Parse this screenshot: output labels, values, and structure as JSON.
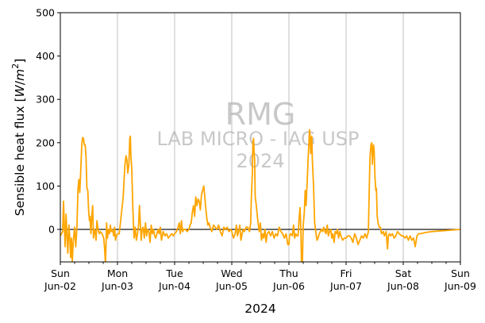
{
  "chart_data": {
    "type": "line",
    "title": "",
    "ylabel": "Sensible heat flux [W/m²]",
    "ylabel_parts": {
      "prefix": "Sensible heat flux [",
      "var": "W",
      "sep": "/",
      "var2": "m",
      "sup": "2",
      "suffix": "]"
    },
    "xlabel": "2024",
    "ylim": [
      -75,
      500
    ],
    "xlim": [
      0,
      7
    ],
    "x_unit": "days since Sun Jun-02 00:00",
    "yticks": [
      0,
      100,
      200,
      300,
      400,
      500
    ],
    "xticks": [
      {
        "pos": 0,
        "day": "Sun",
        "date": "Jun-02"
      },
      {
        "pos": 1,
        "day": "Mon",
        "date": "Jun-03"
      },
      {
        "pos": 2,
        "day": "Tue",
        "date": "Jun-04"
      },
      {
        "pos": 3,
        "day": "Wed",
        "date": "Jun-05"
      },
      {
        "pos": 4,
        "day": "Thu",
        "date": "Jun-06"
      },
      {
        "pos": 5,
        "day": "Fri",
        "date": "Jun-07"
      },
      {
        "pos": 6,
        "day": "Sat",
        "date": "Jun-08"
      },
      {
        "pos": 7,
        "day": "Sun",
        "date": "Jun-09"
      }
    ],
    "grid": "vertical at major ticks",
    "zero_line": true,
    "watermark": [
      "RMG",
      "LAB MICRO - IAG USP",
      "2024"
    ],
    "series": [
      {
        "color": "#FFA500",
        "points": [
          [
            0.0,
            -15
          ],
          [
            0.02,
            -10
          ],
          [
            0.04,
            -5
          ],
          [
            0.055,
            65
          ],
          [
            0.07,
            10
          ],
          [
            0.085,
            -40
          ],
          [
            0.1,
            35
          ],
          [
            0.115,
            -10
          ],
          [
            0.13,
            -55
          ],
          [
            0.15,
            10
          ],
          [
            0.165,
            -20
          ],
          [
            0.18,
            -65
          ],
          [
            0.195,
            -20
          ],
          [
            0.21,
            -75
          ],
          [
            0.225,
            -30
          ],
          [
            0.25,
            5
          ],
          [
            0.27,
            -40
          ],
          [
            0.29,
            5
          ],
          [
            0.31,
            95
          ],
          [
            0.325,
            115
          ],
          [
            0.34,
            85
          ],
          [
            0.355,
            130
          ],
          [
            0.375,
            195
          ],
          [
            0.39,
            212
          ],
          [
            0.405,
            210
          ],
          [
            0.42,
            195
          ],
          [
            0.435,
            195
          ],
          [
            0.45,
            165
          ],
          [
            0.465,
            95
          ],
          [
            0.48,
            90
          ],
          [
            0.495,
            45
          ],
          [
            0.51,
            20
          ],
          [
            0.52,
            30
          ],
          [
            0.535,
            -10
          ],
          [
            0.55,
            30
          ],
          [
            0.565,
            55
          ],
          [
            0.58,
            -20
          ],
          [
            0.595,
            0
          ],
          [
            0.61,
            -5
          ],
          [
            0.625,
            -25
          ],
          [
            0.64,
            20
          ],
          [
            0.655,
            5
          ],
          [
            0.67,
            -5
          ],
          [
            0.685,
            -10
          ],
          [
            0.7,
            -5
          ],
          [
            0.73,
            -10
          ],
          [
            0.76,
            -20
          ],
          [
            0.775,
            -45
          ],
          [
            0.79,
            -80
          ],
          [
            0.81,
            15
          ],
          [
            0.825,
            -20
          ],
          [
            0.84,
            0
          ],
          [
            0.86,
            -10
          ],
          [
            0.875,
            10
          ],
          [
            0.89,
            -5
          ],
          [
            0.905,
            0
          ],
          [
            0.92,
            -5
          ],
          [
            0.935,
            -15
          ],
          [
            0.95,
            5
          ],
          [
            0.965,
            -25
          ],
          [
            0.98,
            -15
          ],
          [
            1.0,
            -10
          ],
          [
            1.03,
            -10
          ],
          [
            1.06,
            25
          ],
          [
            1.1,
            75
          ],
          [
            1.13,
            150
          ],
          [
            1.15,
            170
          ],
          [
            1.165,
            160
          ],
          [
            1.18,
            130
          ],
          [
            1.2,
            150
          ],
          [
            1.215,
            210
          ],
          [
            1.225,
            215
          ],
          [
            1.235,
            170
          ],
          [
            1.25,
            140
          ],
          [
            1.27,
            45
          ],
          [
            1.29,
            -20
          ],
          [
            1.31,
            5
          ],
          [
            1.33,
            -25
          ],
          [
            1.35,
            -10
          ],
          [
            1.37,
            10
          ],
          [
            1.385,
            55
          ],
          [
            1.4,
            15
          ],
          [
            1.415,
            -25
          ],
          [
            1.43,
            0
          ],
          [
            1.45,
            5
          ],
          [
            1.47,
            -20
          ],
          [
            1.49,
            15
          ],
          [
            1.51,
            -15
          ],
          [
            1.53,
            0
          ],
          [
            1.55,
            -5
          ],
          [
            1.57,
            -30
          ],
          [
            1.59,
            10
          ],
          [
            1.61,
            -10
          ],
          [
            1.63,
            0
          ],
          [
            1.65,
            -15
          ],
          [
            1.67,
            -20
          ],
          [
            1.69,
            -10
          ],
          [
            1.71,
            0
          ],
          [
            1.73,
            -10
          ],
          [
            1.75,
            5
          ],
          [
            1.77,
            -25
          ],
          [
            1.8,
            -5
          ],
          [
            1.83,
            -15
          ],
          [
            1.86,
            -10
          ],
          [
            1.89,
            -20
          ],
          [
            1.92,
            -15
          ],
          [
            1.95,
            -10
          ],
          [
            1.98,
            -15
          ],
          [
            2.0,
            -10
          ],
          [
            2.03,
            -5
          ],
          [
            2.06,
            5
          ],
          [
            2.08,
            15
          ],
          [
            2.1,
            -10
          ],
          [
            2.12,
            20
          ],
          [
            2.14,
            -5
          ],
          [
            2.16,
            0
          ],
          [
            2.19,
            0
          ],
          [
            2.22,
            -5
          ],
          [
            2.25,
            0
          ],
          [
            2.27,
            10
          ],
          [
            2.29,
            15
          ],
          [
            2.31,
            40
          ],
          [
            2.33,
            55
          ],
          [
            2.35,
            30
          ],
          [
            2.37,
            75
          ],
          [
            2.39,
            55
          ],
          [
            2.41,
            70
          ],
          [
            2.43,
            65
          ],
          [
            2.45,
            45
          ],
          [
            2.47,
            80
          ],
          [
            2.49,
            90
          ],
          [
            2.51,
            100
          ],
          [
            2.525,
            80
          ],
          [
            2.54,
            55
          ],
          [
            2.56,
            30
          ],
          [
            2.58,
            10
          ],
          [
            2.6,
            15
          ],
          [
            2.62,
            5
          ],
          [
            2.65,
            -5
          ],
          [
            2.68,
            10
          ],
          [
            2.71,
            5
          ],
          [
            2.74,
            0
          ],
          [
            2.77,
            10
          ],
          [
            2.8,
            -5
          ],
          [
            2.83,
            -15
          ],
          [
            2.86,
            5
          ],
          [
            2.89,
            0
          ],
          [
            2.92,
            5
          ],
          [
            2.95,
            -5
          ],
          [
            2.98,
            0
          ],
          [
            3.0,
            -5
          ],
          [
            3.03,
            -20
          ],
          [
            3.06,
            -10
          ],
          [
            3.08,
            10
          ],
          [
            3.1,
            -15
          ],
          [
            3.12,
            -5
          ],
          [
            3.14,
            10
          ],
          [
            3.16,
            -25
          ],
          [
            3.18,
            -10
          ],
          [
            3.2,
            0
          ],
          [
            3.22,
            -5
          ],
          [
            3.25,
            5
          ],
          [
            3.28,
            5
          ],
          [
            3.31,
            -5
          ],
          [
            3.33,
            15
          ],
          [
            3.345,
            80
          ],
          [
            3.36,
            130
          ],
          [
            3.37,
            200
          ],
          [
            3.38,
            210
          ],
          [
            3.39,
            180
          ],
          [
            3.4,
            160
          ],
          [
            3.41,
            75
          ],
          [
            3.425,
            60
          ],
          [
            3.44,
            40
          ],
          [
            3.46,
            15
          ],
          [
            3.48,
            -5
          ],
          [
            3.5,
            15
          ],
          [
            3.52,
            -25
          ],
          [
            3.54,
            -10
          ],
          [
            3.56,
            -20
          ],
          [
            3.58,
            0
          ],
          [
            3.6,
            -30
          ],
          [
            3.62,
            -10
          ],
          [
            3.65,
            -5
          ],
          [
            3.68,
            -15
          ],
          [
            3.71,
            -5
          ],
          [
            3.74,
            -20
          ],
          [
            3.77,
            -10
          ],
          [
            3.8,
            -15
          ],
          [
            3.83,
            5
          ],
          [
            3.86,
            -5
          ],
          [
            3.89,
            -10
          ],
          [
            3.92,
            -20
          ],
          [
            3.95,
            -10
          ],
          [
            3.98,
            -35
          ],
          [
            4.0,
            -35
          ],
          [
            4.01,
            -15
          ],
          [
            4.03,
            -10
          ],
          [
            4.06,
            -15
          ],
          [
            4.08,
            10
          ],
          [
            4.1,
            -20
          ],
          [
            4.12,
            -10
          ],
          [
            4.14,
            -15
          ],
          [
            4.16,
            -15
          ],
          [
            4.18,
            30
          ],
          [
            4.195,
            50
          ],
          [
            4.21,
            -5
          ],
          [
            4.22,
            -80
          ],
          [
            4.235,
            -80
          ],
          [
            4.25,
            10
          ],
          [
            4.27,
            40
          ],
          [
            4.285,
            90
          ],
          [
            4.3,
            55
          ],
          [
            4.32,
            110
          ],
          [
            4.335,
            160
          ],
          [
            4.35,
            200
          ],
          [
            4.36,
            230
          ],
          [
            4.37,
            220
          ],
          [
            4.38,
            175
          ],
          [
            4.39,
            200
          ],
          [
            4.4,
            215
          ],
          [
            4.41,
            160
          ],
          [
            4.43,
            100
          ],
          [
            4.45,
            15
          ],
          [
            4.47,
            -5
          ],
          [
            4.49,
            -25
          ],
          [
            4.51,
            -20
          ],
          [
            4.53,
            -10
          ],
          [
            4.55,
            -5
          ],
          [
            4.57,
            0
          ],
          [
            4.59,
            -5
          ],
          [
            4.61,
            5
          ],
          [
            4.63,
            -5
          ],
          [
            4.65,
            -10
          ],
          [
            4.67,
            10
          ],
          [
            4.69,
            -15
          ],
          [
            4.71,
            -5
          ],
          [
            4.73,
            0
          ],
          [
            4.75,
            -20
          ],
          [
            4.77,
            -10
          ],
          [
            4.79,
            -30
          ],
          [
            4.81,
            -5
          ],
          [
            4.83,
            -10
          ],
          [
            4.85,
            0
          ],
          [
            4.87,
            -20
          ],
          [
            4.89,
            -5
          ],
          [
            4.91,
            -15
          ],
          [
            4.94,
            -25
          ],
          [
            4.97,
            -20
          ],
          [
            5.0,
            -20
          ],
          [
            5.03,
            -15
          ],
          [
            5.06,
            -15
          ],
          [
            5.09,
            -20
          ],
          [
            5.12,
            -30
          ],
          [
            5.15,
            -10
          ],
          [
            5.18,
            -20
          ],
          [
            5.21,
            -35
          ],
          [
            5.24,
            -25
          ],
          [
            5.27,
            -15
          ],
          [
            5.3,
            -20
          ],
          [
            5.33,
            -10
          ],
          [
            5.36,
            -20
          ],
          [
            5.39,
            -5
          ],
          [
            5.4,
            60
          ],
          [
            5.41,
            120
          ],
          [
            5.42,
            170
          ],
          [
            5.435,
            195
          ],
          [
            5.45,
            200
          ],
          [
            5.46,
            150
          ],
          [
            5.47,
            175
          ],
          [
            5.48,
            195
          ],
          [
            5.49,
            185
          ],
          [
            5.505,
            120
          ],
          [
            5.52,
            90
          ],
          [
            5.53,
            95
          ],
          [
            5.545,
            30
          ],
          [
            5.56,
            15
          ],
          [
            5.58,
            5
          ],
          [
            5.6,
            5
          ],
          [
            5.62,
            -10
          ],
          [
            5.65,
            -5
          ],
          [
            5.67,
            -15
          ],
          [
            5.7,
            -5
          ],
          [
            5.725,
            -45
          ],
          [
            5.74,
            -15
          ],
          [
            5.76,
            -10
          ],
          [
            5.78,
            -15
          ],
          [
            5.81,
            -10
          ],
          [
            5.84,
            -20
          ],
          [
            5.87,
            -15
          ],
          [
            5.9,
            -5
          ],
          [
            5.93,
            -10
          ],
          [
            5.97,
            -15
          ],
          [
            6.0,
            -15
          ],
          [
            6.03,
            -20
          ],
          [
            6.06,
            -15
          ],
          [
            6.09,
            -25
          ],
          [
            6.12,
            -15
          ],
          [
            6.15,
            -25
          ],
          [
            6.18,
            -20
          ],
          [
            6.21,
            -40
          ],
          [
            6.24,
            -15
          ],
          [
            6.27,
            -10
          ],
          [
            6.3,
            -10
          ],
          [
            6.4,
            -7
          ],
          [
            6.5,
            -5
          ],
          [
            6.6,
            -4
          ],
          [
            6.7,
            -3
          ],
          [
            6.8,
            -2
          ],
          [
            6.9,
            -1
          ],
          [
            7.0,
            0
          ]
        ]
      }
    ]
  }
}
